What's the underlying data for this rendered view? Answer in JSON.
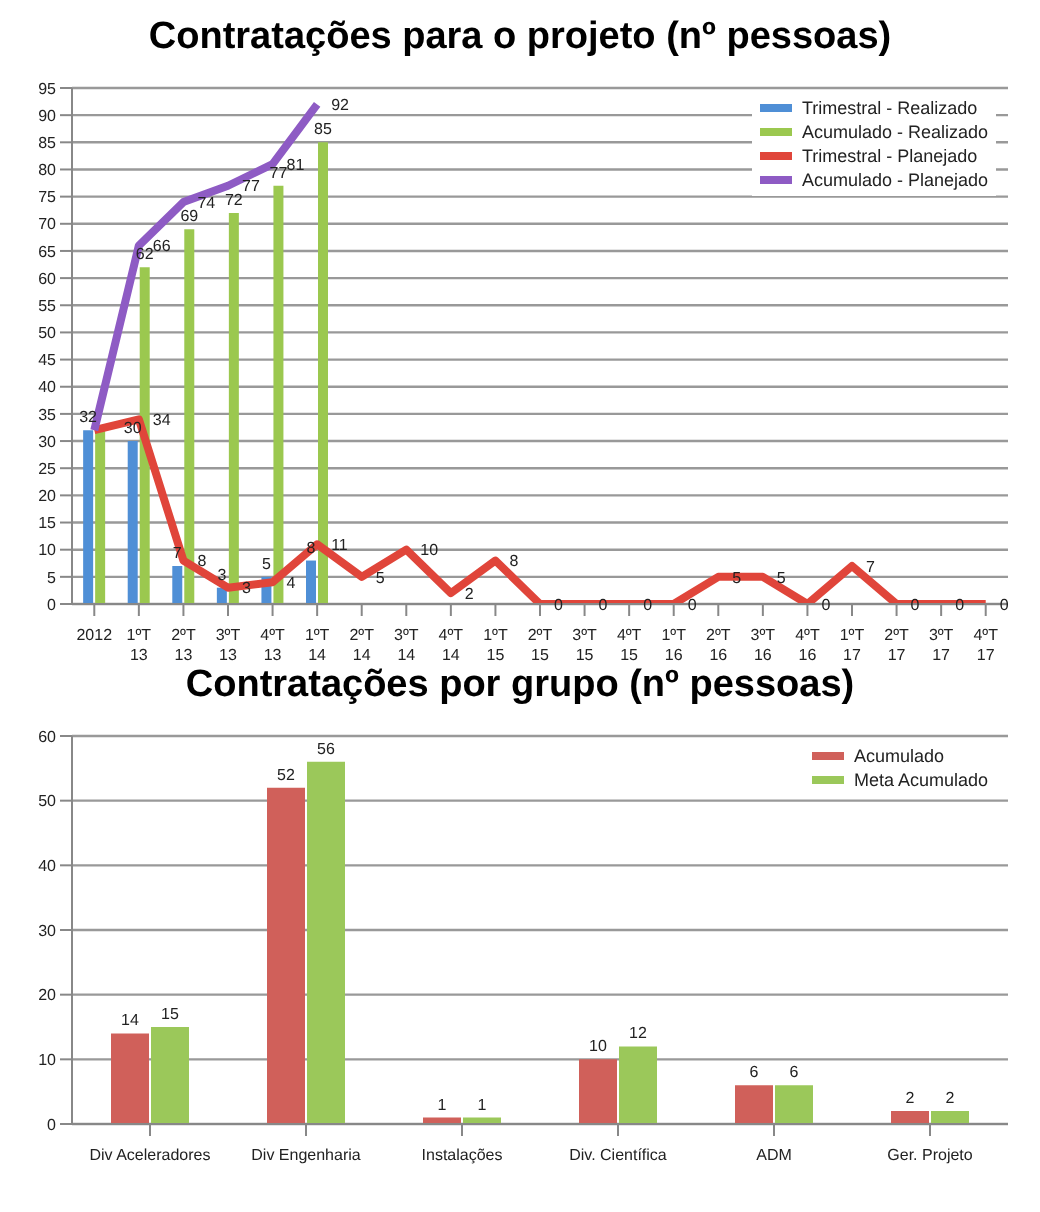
{
  "chart_data": [
    {
      "type": "bar",
      "title": "Contratações para o projeto (nº pessoas)",
      "categories": [
        "2012",
        "1ºT 13",
        "2ºT 13",
        "3ºT 13",
        "4ºT 13",
        "1ºT 14",
        "2ºT 14",
        "3ºT 14",
        "4ºT 14",
        "1ºT 15",
        "2ºT 15",
        "3ºT 15",
        "4ºT 15",
        "1ºT 16",
        "2ºT 16",
        "3ºT 16",
        "4ºT 16",
        "1ºT 17",
        "2ºT 17",
        "3ºT 17",
        "4ºT 17"
      ],
      "series": [
        {
          "name": "Trimestral - Realizado",
          "type": "bar",
          "color": "#4f8fd6",
          "values": [
            32,
            30,
            7,
            3,
            5,
            8,
            null,
            null,
            null,
            null,
            null,
            null,
            null,
            null,
            null,
            null,
            null,
            null,
            null,
            null,
            null
          ],
          "value_labels": [
            "32",
            "30",
            "7",
            "3",
            "5",
            "8",
            null,
            null,
            null,
            null,
            null,
            null,
            null,
            null,
            null,
            null,
            null,
            null,
            null,
            null,
            null
          ]
        },
        {
          "name": "Acumulado - Realizado",
          "type": "bar",
          "color": "#9bc84f",
          "values": [
            32,
            62,
            69,
            72,
            77,
            85,
            null,
            null,
            null,
            null,
            null,
            null,
            null,
            null,
            null,
            null,
            null,
            null,
            null,
            null,
            null
          ],
          "value_labels": [
            null,
            "62",
            "69",
            "72",
            "77",
            "85",
            null,
            null,
            null,
            null,
            null,
            null,
            null,
            null,
            null,
            null,
            null,
            null,
            null,
            null,
            null
          ]
        },
        {
          "name": "Trimestral - Planejado",
          "type": "line",
          "color": "#e0453a",
          "values": [
            32,
            34,
            8,
            3,
            4,
            11,
            5,
            10,
            2,
            8,
            0,
            0,
            0,
            0,
            5,
            5,
            0,
            7,
            0,
            0,
            0
          ],
          "value_labels": [
            null,
            "34",
            "8",
            "3",
            "4",
            "11",
            "5",
            "10",
            "2",
            "8",
            "0",
            "0",
            "0",
            "0",
            "5",
            "5",
            "0",
            "7",
            "0",
            "0",
            "0"
          ]
        },
        {
          "name": "Acumulado - Planejado",
          "type": "line",
          "color": "#8e5bc4",
          "values": [
            32,
            66,
            74,
            77,
            81,
            92,
            null,
            null,
            null,
            null,
            null,
            null,
            null,
            null,
            null,
            null,
            null,
            null,
            null,
            null,
            null
          ],
          "value_labels": [
            null,
            "66",
            "74",
            "77",
            "81",
            "92",
            null,
            null,
            null,
            null,
            null,
            null,
            null,
            null,
            null,
            null,
            null,
            null,
            null,
            null,
            null
          ]
        }
      ],
      "ylim": [
        0,
        95
      ],
      "yticks": [
        0,
        5,
        10,
        15,
        20,
        25,
        30,
        35,
        40,
        45,
        50,
        55,
        60,
        65,
        70,
        75,
        80,
        85,
        90,
        95
      ],
      "grid": "y",
      "legend": "top right",
      "marker": "none"
    },
    {
      "type": "bar",
      "title": "Contratações por grupo (nº pessoas)",
      "categories": [
        "Div Aceleradores",
        "Div Engenharia",
        "Instalações",
        "Div. Científica",
        "ADM",
        "Ger. Projeto"
      ],
      "series": [
        {
          "name": "Acumulado",
          "color": "#d0605a",
          "values": [
            14,
            52,
            1,
            10,
            6,
            2
          ]
        },
        {
          "name": "Meta Acumulado",
          "color": "#9bc85a",
          "values": [
            15,
            56,
            1,
            12,
            6,
            2
          ]
        }
      ],
      "ylim": [
        0,
        60
      ],
      "yticks": [
        0,
        10,
        20,
        30,
        40,
        50,
        60
      ],
      "grid": "y",
      "legend": "top right",
      "data_labels": true
    }
  ]
}
